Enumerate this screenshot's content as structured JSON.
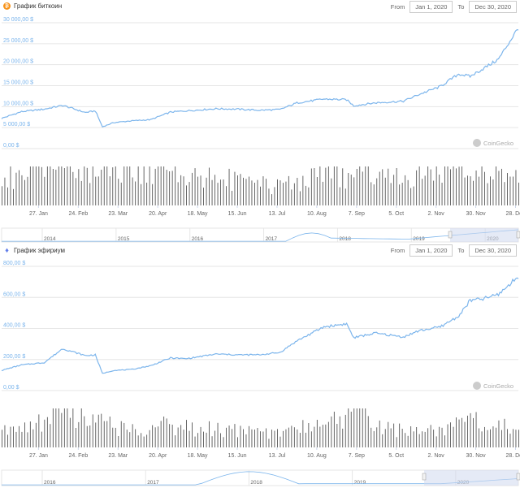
{
  "watermark": "CoinGecko",
  "colors": {
    "line": "#7cb5ec",
    "volume": "#555555",
    "grid": "#e6e6e6",
    "navigator_fill": "#cfd8ee"
  },
  "x_ticks": [
    "27. Jan",
    "24. Feb",
    "23. Mar",
    "20. Apr",
    "18. May",
    "15. Jun",
    "13. Jul",
    "10. Aug",
    "7. Sep",
    "5. Oct",
    "2. Nov",
    "30. Nov",
    "28. Dec"
  ],
  "btc": {
    "title": "График биткоин",
    "icon": "bitcoin-icon",
    "from_label": "From",
    "from_value": "Jan 1, 2020",
    "to_label": "To",
    "to_value": "Dec 30, 2020",
    "navigator_years": [
      "2014",
      "2015",
      "2016",
      "2017",
      "2018",
      "2019",
      "2020"
    ]
  },
  "eth": {
    "title": "График эфириум",
    "icon": "ethereum-icon",
    "from_label": "From",
    "from_value": "Jan 1, 2020",
    "to_label": "To",
    "to_value": "Dec 30, 2020",
    "navigator_years": [
      "2016",
      "2017",
      "2018",
      "2019",
      "2020"
    ]
  },
  "chart_data": [
    {
      "type": "line",
      "y_tick_labels": [
        "30 000,00 $",
        "25 000,00 $",
        "20 000,00 $",
        "15 000,00 $",
        "10 000,00 $",
        "5 000,00 $",
        "0,00 $"
      ],
      "ylim": [
        0,
        30000
      ],
      "x": [
        "2020-01-01",
        "2020-01-15",
        "2020-01-31",
        "2020-02-13",
        "2020-02-29",
        "2020-03-07",
        "2020-03-12",
        "2020-03-20",
        "2020-04-01",
        "2020-04-15",
        "2020-04-29",
        "2020-05-10",
        "2020-05-31",
        "2020-06-15",
        "2020-06-30",
        "2020-07-15",
        "2020-07-27",
        "2020-08-15",
        "2020-08-31",
        "2020-09-05",
        "2020-09-20",
        "2020-10-10",
        "2020-10-21",
        "2020-11-05",
        "2020-11-18",
        "2020-11-26",
        "2020-12-05",
        "2020-12-16",
        "2020-12-30"
      ],
      "series": [
        {
          "values": [
            7200,
            8800,
            9400,
            10300,
            8600,
            9000,
            5200,
            6200,
            6600,
            6900,
            8700,
            9000,
            9500,
            9400,
            9150,
            9300,
            10900,
            11800,
            11650,
            10200,
            10900,
            11300,
            12900,
            14800,
            17800,
            17200,
            19000,
            21300,
            28800
          ]
        },
        {
          "values": [
            32,
            40,
            46,
            68,
            50,
            45,
            55,
            44,
            40,
            42,
            48,
            40,
            34,
            30,
            26,
            22,
            30,
            38,
            35,
            40,
            42,
            36,
            38,
            44,
            48,
            42,
            40,
            44,
            42
          ]
        }
      ]
    },
    {
      "type": "line",
      "y_tick_labels": [
        "800,00 $",
        "600,00 $",
        "400,00 $",
        "200,00 $",
        "0,00 $"
      ],
      "ylim": [
        0,
        800
      ],
      "x": [
        "2020-01-01",
        "2020-01-15",
        "2020-01-31",
        "2020-02-13",
        "2020-02-29",
        "2020-03-07",
        "2020-03-12",
        "2020-03-20",
        "2020-04-01",
        "2020-04-15",
        "2020-04-29",
        "2020-05-10",
        "2020-05-31",
        "2020-06-15",
        "2020-06-30",
        "2020-07-15",
        "2020-07-27",
        "2020-08-15",
        "2020-08-31",
        "2020-09-05",
        "2020-09-20",
        "2020-10-10",
        "2020-10-21",
        "2020-11-05",
        "2020-11-18",
        "2020-11-26",
        "2020-12-05",
        "2020-12-16",
        "2020-12-30"
      ],
      "series": [
        {
          "values": [
            130,
            165,
            180,
            270,
            225,
            230,
            110,
            130,
            135,
            160,
            210,
            205,
            235,
            230,
            230,
            245,
            320,
            410,
            430,
            340,
            370,
            345,
            385,
            410,
            480,
            580,
            590,
            620,
            735
          ]
        },
        {
          "values": [
            18,
            24,
            30,
            46,
            34,
            30,
            30,
            24,
            22,
            24,
            28,
            24,
            22,
            20,
            18,
            18,
            22,
            32,
            30,
            90,
            26,
            20,
            20,
            24,
            28,
            32,
            28,
            30,
            28
          ]
        }
      ]
    }
  ]
}
